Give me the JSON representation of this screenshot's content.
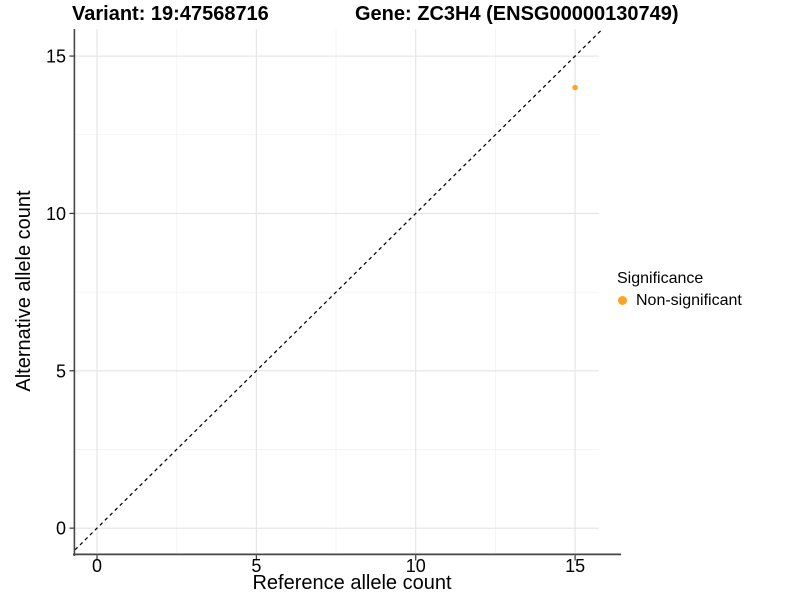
{
  "chart_data": {
    "type": "scatter",
    "titles": [
      "Variant: 19:47568716",
      "Gene: ZC3H4 (ENSG00000130749)"
    ],
    "xlabel": "Reference allele count",
    "ylabel": "Alternative allele count",
    "x_ticks": [
      0,
      5,
      10,
      15
    ],
    "y_ticks": [
      0,
      5,
      10,
      15
    ],
    "x_minor_ticks": [
      2.5,
      7.5,
      12.5
    ],
    "y_minor_ticks": [
      2.5,
      7.5,
      12.5
    ],
    "xlim": [
      -0.69,
      15.75
    ],
    "ylim": [
      -0.79,
      15.86
    ],
    "grid": true,
    "legend_position": "right",
    "series": [
      {
        "name": "Non-significant",
        "color": "#FFA320",
        "points": [
          {
            "x": 15,
            "y": 14
          }
        ]
      }
    ],
    "reference_line": {
      "slope": 1,
      "intercept": 0,
      "style": "dashed",
      "color": "#000000"
    }
  },
  "legend": {
    "title": "Significance",
    "items": [
      {
        "label": "Non-significant",
        "color": "#FFA320"
      }
    ]
  },
  "colors": {
    "background": "#FFFFFF",
    "axis_line": "#464646",
    "tick": "#333333",
    "grid_major": "#E4E4E4",
    "grid_minor": "#F2F2F2",
    "text": "#000000"
  }
}
